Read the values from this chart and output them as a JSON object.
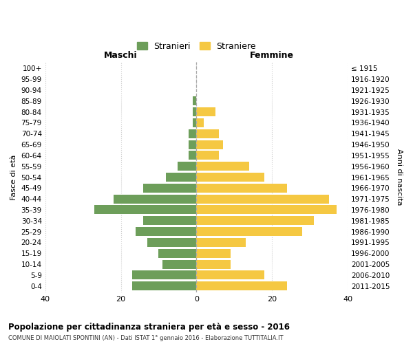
{
  "age_groups": [
    "100+",
    "95-99",
    "90-94",
    "85-89",
    "80-84",
    "75-79",
    "70-74",
    "65-69",
    "60-64",
    "55-59",
    "50-54",
    "45-49",
    "40-44",
    "35-39",
    "30-34",
    "25-29",
    "20-24",
    "15-19",
    "10-14",
    "5-9",
    "0-4"
  ],
  "birth_years": [
    "≤ 1915",
    "1916-1920",
    "1921-1925",
    "1926-1930",
    "1931-1935",
    "1936-1940",
    "1941-1945",
    "1946-1950",
    "1951-1955",
    "1956-1960",
    "1961-1965",
    "1966-1970",
    "1971-1975",
    "1976-1980",
    "1981-1985",
    "1986-1990",
    "1991-1995",
    "1996-2000",
    "2001-2005",
    "2006-2010",
    "2011-2015"
  ],
  "maschi": [
    0,
    0,
    0,
    1,
    1,
    1,
    2,
    2,
    2,
    5,
    8,
    14,
    22,
    27,
    14,
    16,
    13,
    10,
    9,
    17,
    17
  ],
  "femmine": [
    0,
    0,
    0,
    0,
    5,
    2,
    6,
    7,
    6,
    14,
    18,
    24,
    35,
    37,
    31,
    28,
    13,
    9,
    9,
    18,
    24
  ],
  "maschi_color": "#6d9e5a",
  "femmine_color": "#f5c842",
  "background_color": "#ffffff",
  "grid_color": "#cccccc",
  "title": "Popolazione per cittadinanza straniera per età e sesso - 2016",
  "subtitle": "COMUNE DI MAIOLATI SPONTINI (AN) - Dati ISTAT 1° gennaio 2016 - Elaborazione TUTTITALIA.IT",
  "xlabel_left": "Maschi",
  "xlabel_right": "Femmine",
  "ylabel_left": "Fasce di età",
  "ylabel_right": "Anni di nascita",
  "legend_maschi": "Stranieri",
  "legend_femmine": "Straniere",
  "xlim": 40,
  "bar_height": 0.82
}
